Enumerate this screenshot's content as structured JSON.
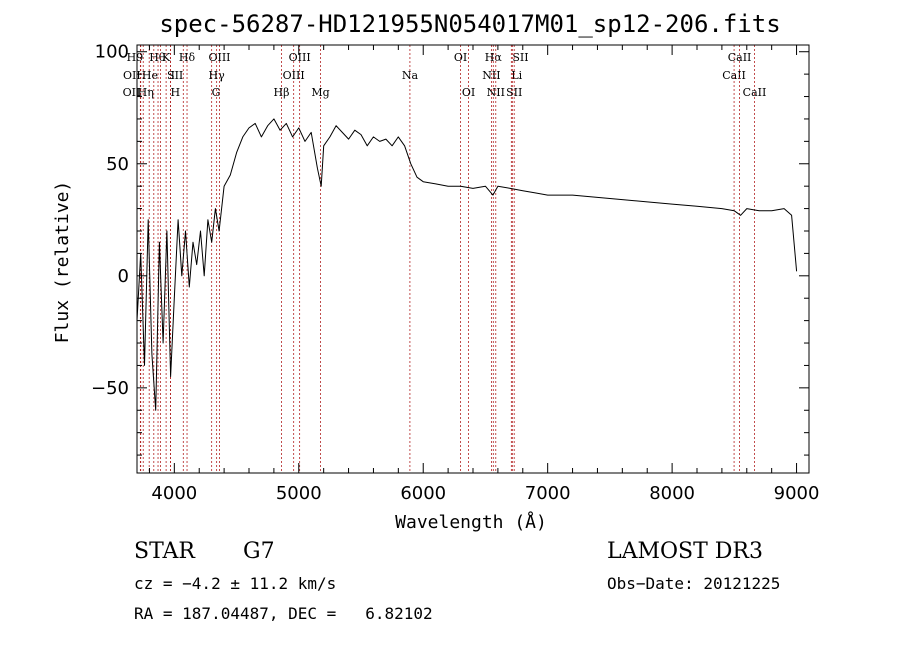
{
  "chart_data": {
    "type": "line",
    "title": "spec-56287-HD121955N054017M01_sp12-206.fits",
    "xlabel": "Wavelength (Å)",
    "ylabel": "Flux (relative)",
    "xlim": [
      3700,
      9100
    ],
    "ylim": [
      -88,
      103
    ],
    "x_ticks": [
      4000,
      5000,
      6000,
      7000,
      8000,
      9000
    ],
    "x_tick_labels": [
      "4000",
      "5000",
      "6000",
      "7000",
      "8000",
      "9000"
    ],
    "y_ticks": [
      -50,
      0,
      50,
      100
    ],
    "y_tick_labels": [
      "−50",
      "0",
      "50",
      "100"
    ],
    "grid": false,
    "series": [
      {
        "name": "spectrum",
        "x": [
          3700,
          3730,
          3760,
          3790,
          3820,
          3850,
          3880,
          3910,
          3940,
          3970,
          4000,
          4030,
          4060,
          4090,
          4120,
          4150,
          4180,
          4210,
          4240,
          4270,
          4300,
          4330,
          4360,
          4400,
          4450,
          4500,
          4550,
          4600,
          4650,
          4700,
          4750,
          4800,
          4850,
          4900,
          4950,
          5000,
          5050,
          5100,
          5150,
          5180,
          5200,
          5250,
          5300,
          5350,
          5400,
          5450,
          5500,
          5550,
          5600,
          5650,
          5700,
          5750,
          5800,
          5850,
          5900,
          5950,
          6000,
          6100,
          6200,
          6300,
          6400,
          6500,
          6560,
          6600,
          6700,
          6800,
          6900,
          7000,
          7200,
          7400,
          7600,
          7800,
          8000,
          8200,
          8400,
          8500,
          8550,
          8600,
          8700,
          8800,
          8900,
          8960,
          9000
        ],
        "y": [
          -20,
          10,
          -40,
          25,
          -35,
          -60,
          15,
          -30,
          20,
          -45,
          -10,
          25,
          0,
          20,
          -5,
          15,
          5,
          20,
          0,
          25,
          15,
          30,
          20,
          40,
          45,
          55,
          62,
          66,
          68,
          62,
          67,
          70,
          65,
          68,
          62,
          66,
          60,
          64,
          48,
          40,
          58,
          62,
          67,
          64,
          61,
          65,
          63,
          58,
          62,
          60,
          61,
          58,
          62,
          58,
          50,
          44,
          42,
          41,
          40,
          40,
          39,
          40,
          36,
          40,
          39,
          38,
          37,
          36,
          36,
          35,
          34,
          33,
          32,
          31,
          30,
          29,
          27,
          30,
          29,
          29,
          30,
          27,
          2
        ]
      }
    ],
    "lines": [
      {
        "wavelength": 3727,
        "label": "OII",
        "row": 2,
        "anchor": "end"
      },
      {
        "wavelength": 3730,
        "label": "OII",
        "row": 1,
        "anchor": "end"
      },
      {
        "wavelength": 3750,
        "label": "H9",
        "row": 0,
        "anchor": "end"
      },
      {
        "wavelength": 3798,
        "label": "Hθ",
        "row": 0,
        "anchor": "start"
      },
      {
        "wavelength": 3835,
        "label": "Hη",
        "row": 2,
        "anchor": "end"
      },
      {
        "wavelength": 3869,
        "label": "He",
        "row": 1,
        "anchor": "end"
      },
      {
        "wavelength": 3889,
        "label": "",
        "row": 0,
        "anchor": "middle"
      },
      {
        "wavelength": 3934,
        "label": "K",
        "row": 0,
        "anchor": "middle"
      },
      {
        "wavelength": 3969,
        "label": "H",
        "row": 2,
        "anchor": "start"
      },
      {
        "wavelength": 3970,
        "label": "I",
        "row": 1,
        "anchor": "start"
      },
      {
        "wavelength": 4072,
        "label": "SII",
        "row": 1,
        "anchor": "end"
      },
      {
        "wavelength": 4102,
        "label": "Hδ",
        "row": 0,
        "anchor": "middle"
      },
      {
        "wavelength": 4300,
        "label": "G",
        "row": 2,
        "anchor": "start"
      },
      {
        "wavelength": 4340,
        "label": "Hγ",
        "row": 1,
        "anchor": "middle"
      },
      {
        "wavelength": 4363,
        "label": "OIII",
        "row": 0,
        "anchor": "middle"
      },
      {
        "wavelength": 4861,
        "label": "Hβ",
        "row": 2,
        "anchor": "middle"
      },
      {
        "wavelength": 4959,
        "label": "OIII",
        "row": 1,
        "anchor": "middle"
      },
      {
        "wavelength": 5007,
        "label": "OIII",
        "row": 0,
        "anchor": "middle"
      },
      {
        "wavelength": 5175,
        "label": "Mg",
        "row": 2,
        "anchor": "middle"
      },
      {
        "wavelength": 5893,
        "label": "Na",
        "row": 1,
        "anchor": "middle"
      },
      {
        "wavelength": 6300,
        "label": "OI",
        "row": 0,
        "anchor": "middle"
      },
      {
        "wavelength": 6364,
        "label": "OI",
        "row": 2,
        "anchor": "middle"
      },
      {
        "wavelength": 6548,
        "label": "NII",
        "row": 1,
        "anchor": "middle"
      },
      {
        "wavelength": 6563,
        "label": "Hα",
        "row": 0,
        "anchor": "middle"
      },
      {
        "wavelength": 6583,
        "label": "NII",
        "row": 2,
        "anchor": "middle"
      },
      {
        "wavelength": 6708,
        "label": "Li",
        "row": 1,
        "anchor": "start"
      },
      {
        "wavelength": 6716,
        "label": "SII",
        "row": 0,
        "anchor": "start"
      },
      {
        "wavelength": 6731,
        "label": "SII",
        "row": 2,
        "anchor": "middle"
      },
      {
        "wavelength": 8498,
        "label": "CaII",
        "row": 1,
        "anchor": "middle"
      },
      {
        "wavelength": 8542,
        "label": "CaII",
        "row": 0,
        "anchor": "middle"
      },
      {
        "wavelength": 8662,
        "label": "CaII",
        "row": 2,
        "anchor": "middle"
      }
    ]
  },
  "info": {
    "object_class": "STAR",
    "subclass": "G7",
    "survey": "LAMOST DR3",
    "redshift": "cz = −4.2 ± 11.2 km/s",
    "obs_date": "Obs−Date: 20121225",
    "coordinates": "RA = 187.04487, DEC =   6.82102"
  },
  "colors": {
    "line_marker": "#b22222",
    "spectrum": "#000000",
    "axes": "#000000"
  }
}
